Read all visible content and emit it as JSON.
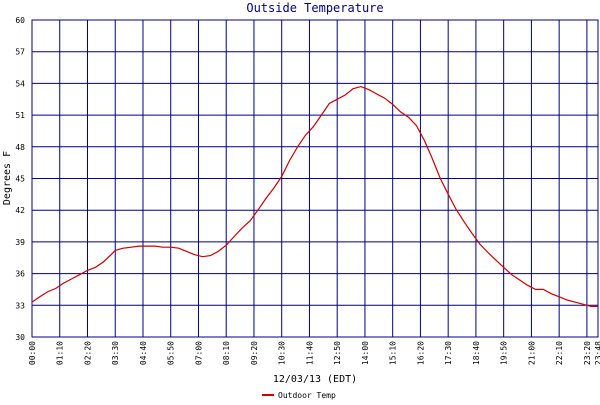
{
  "chart_data": {
    "type": "line",
    "title": "Outside Temperature",
    "ylabel": "Degrees F",
    "xlabel": "12/03/13 (EDT)",
    "ylim": [
      30,
      60
    ],
    "y_ticks": [
      30,
      33,
      36,
      39,
      42,
      45,
      48,
      51,
      54,
      57,
      60
    ],
    "x_range_hours": [
      0,
      23.8
    ],
    "x_tick_labels": [
      "00:00",
      "01:10",
      "02:20",
      "03:30",
      "04:40",
      "05:50",
      "07:00",
      "08:10",
      "09:20",
      "10:30",
      "11:40",
      "12:50",
      "14:00",
      "15:10",
      "16:20",
      "17:30",
      "18:40",
      "19:50",
      "21:00",
      "22:10",
      "23:20",
      "23:48"
    ],
    "grid": true,
    "legend": "bottom-left",
    "colors": {
      "background": "#ffffff",
      "grid": "#000080",
      "title": "#000080",
      "line": "#cc0000",
      "text": "#000000"
    },
    "series": [
      {
        "name": "Outdoor Temp",
        "x_hours": [
          0.0,
          0.33,
          0.67,
          1.0,
          1.33,
          1.67,
          2.0,
          2.33,
          2.67,
          3.0,
          3.33,
          3.5,
          3.83,
          4.17,
          4.5,
          4.83,
          5.17,
          5.5,
          5.83,
          6.17,
          6.5,
          6.83,
          7.17,
          7.5,
          7.83,
          8.17,
          8.5,
          8.83,
          9.17,
          9.5,
          9.83,
          10.17,
          10.5,
          10.83,
          11.17,
          11.5,
          11.83,
          12.17,
          12.5,
          12.83,
          13.17,
          13.5,
          13.83,
          14.17,
          14.5,
          14.83,
          15.17,
          15.5,
          15.83,
          16.17,
          16.5,
          16.83,
          17.17,
          17.5,
          17.83,
          18.17,
          18.5,
          18.83,
          19.17,
          19.5,
          19.83,
          20.17,
          20.5,
          20.83,
          21.17,
          21.5,
          21.83,
          22.17,
          22.5,
          22.83,
          23.17,
          23.5,
          23.8
        ],
        "values": [
          33.3,
          33.8,
          34.3,
          34.6,
          35.1,
          35.5,
          35.9,
          36.3,
          36.6,
          37.1,
          37.8,
          38.2,
          38.4,
          38.5,
          38.6,
          38.6,
          38.6,
          38.5,
          38.5,
          38.4,
          38.1,
          37.8,
          37.6,
          37.7,
          38.1,
          38.7,
          39.5,
          40.3,
          41.0,
          42.0,
          43.1,
          44.1,
          45.2,
          46.7,
          48.0,
          49.1,
          49.9,
          51.0,
          52.1,
          52.5,
          52.9,
          53.5,
          53.7,
          53.4,
          53.0,
          52.6,
          52.0,
          51.3,
          50.8,
          50.0,
          48.6,
          46.9,
          45.0,
          43.5,
          42.1,
          40.9,
          39.8,
          38.8,
          38.0,
          37.3,
          36.6,
          35.9,
          35.4,
          34.9,
          34.5,
          34.5,
          34.1,
          33.8,
          33.5,
          33.3,
          33.1,
          32.9,
          32.9
        ]
      }
    ]
  }
}
